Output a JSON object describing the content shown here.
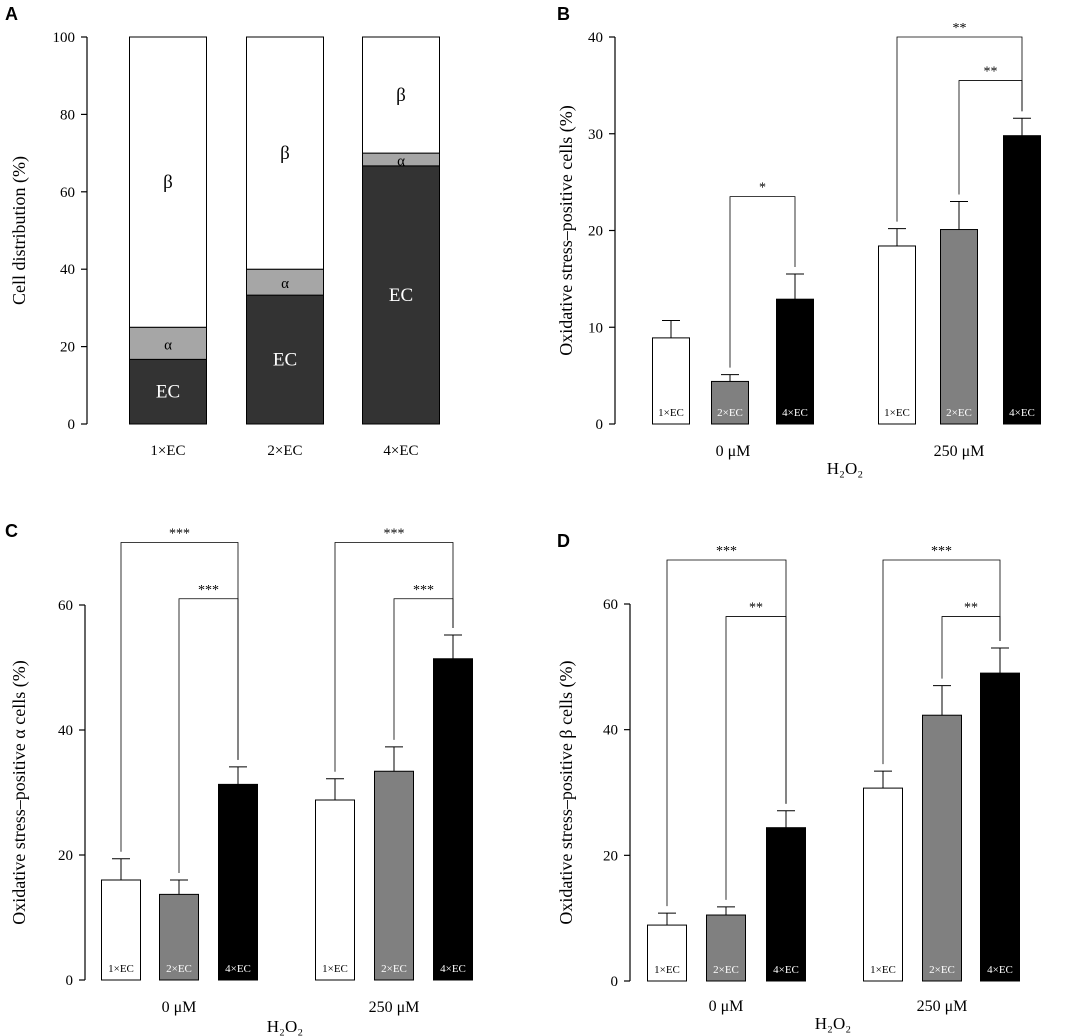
{
  "chart_data": [
    {
      "panel": "A",
      "type": "bar",
      "stacked": true,
      "ylabel": "Cell distribution (%)",
      "ylim": [
        0,
        100
      ],
      "yticks": [
        0,
        20,
        40,
        60,
        80,
        100
      ],
      "categories": [
        "1×EC",
        "2×EC",
        "4×EC"
      ],
      "series": [
        {
          "name": "EC",
          "values": [
            16.7,
            33.3,
            66.7
          ],
          "color": "#333333",
          "label_color": "#ffffff"
        },
        {
          "name": "α",
          "values": [
            8.3,
            6.7,
            3.3
          ],
          "color": "#a6a6a6",
          "label_color": "#000000"
        },
        {
          "name": "β",
          "values": [
            75.0,
            60.0,
            30.0
          ],
          "color": "#ffffff",
          "label_color": "#000000"
        }
      ]
    },
    {
      "panel": "B",
      "type": "bar",
      "ylabel": "Oxidative stress–positive cells (%)",
      "xlabel": "H₂O₂",
      "ylim": [
        0,
        40
      ],
      "yticks": [
        0,
        10,
        20,
        30,
        40
      ],
      "groups": [
        "0 μM",
        "250 μM"
      ],
      "bar_labels": [
        "1×EC",
        "2×EC",
        "4×EC"
      ],
      "colors": [
        "#ffffff",
        "#808080",
        "#000000"
      ],
      "values": [
        [
          8.9,
          4.4,
          12.9
        ],
        [
          18.4,
          20.1,
          29.8
        ]
      ],
      "errors": [
        [
          1.8,
          0.7,
          2.6
        ],
        [
          1.8,
          2.9,
          1.8
        ]
      ],
      "significance": [
        {
          "group": 0,
          "from": 1,
          "to": 2,
          "label": "*",
          "y": 23.5
        },
        {
          "group": 1,
          "from": 1,
          "to": 2,
          "label": "**",
          "y": 35.5
        },
        {
          "group": 1,
          "from": 0,
          "to": 2,
          "label": "**",
          "y": 40.0
        }
      ]
    },
    {
      "panel": "C",
      "type": "bar",
      "ylabel": "Oxidative stress–positive α cells (%)",
      "xlabel": "H₂O₂",
      "ylim": [
        0,
        60
      ],
      "yticks": [
        0,
        20,
        40,
        60
      ],
      "groups": [
        "0 μM",
        "250 μM"
      ],
      "bar_labels": [
        "1×EC",
        "2×EC",
        "4×EC"
      ],
      "colors": [
        "#ffffff",
        "#808080",
        "#000000"
      ],
      "values": [
        [
          16.0,
          13.7,
          31.3
        ],
        [
          28.8,
          33.4,
          51.4
        ]
      ],
      "errors": [
        [
          3.4,
          2.3,
          2.8
        ],
        [
          3.4,
          3.9,
          3.8
        ]
      ],
      "significance": [
        {
          "group": 0,
          "from": 1,
          "to": 2,
          "label": "***",
          "y": 61.0
        },
        {
          "group": 1,
          "from": 1,
          "to": 2,
          "label": "***",
          "y": 61.0
        },
        {
          "group": 0,
          "from": 0,
          "to": 2,
          "label": "***",
          "y": 70.0
        },
        {
          "group": 1,
          "from": 0,
          "to": 2,
          "label": "***",
          "y": 70.0
        }
      ]
    },
    {
      "panel": "D",
      "type": "bar",
      "ylabel": "Oxidative stress–positive β cells (%)",
      "xlabel": "H₂O₂",
      "ylim": [
        0,
        60
      ],
      "yticks": [
        0,
        20,
        40,
        60
      ],
      "groups": [
        "0 μM",
        "250 μM"
      ],
      "bar_labels": [
        "1×EC",
        "2×EC",
        "4×EC"
      ],
      "colors": [
        "#ffffff",
        "#808080",
        "#000000"
      ],
      "values": [
        [
          8.9,
          10.5,
          24.4
        ],
        [
          30.7,
          42.3,
          49.0
        ]
      ],
      "errors": [
        [
          1.9,
          1.3,
          2.7
        ],
        [
          2.7,
          4.7,
          4.0
        ]
      ],
      "significance": [
        {
          "group": 0,
          "from": 1,
          "to": 2,
          "label": "**",
          "y": 58.0
        },
        {
          "group": 1,
          "from": 1,
          "to": 2,
          "label": "**",
          "y": 58.0
        },
        {
          "group": 0,
          "from": 0,
          "to": 2,
          "label": "***",
          "y": 67.0
        },
        {
          "group": 1,
          "from": 0,
          "to": 2,
          "label": "***",
          "y": 67.0
        }
      ]
    }
  ]
}
